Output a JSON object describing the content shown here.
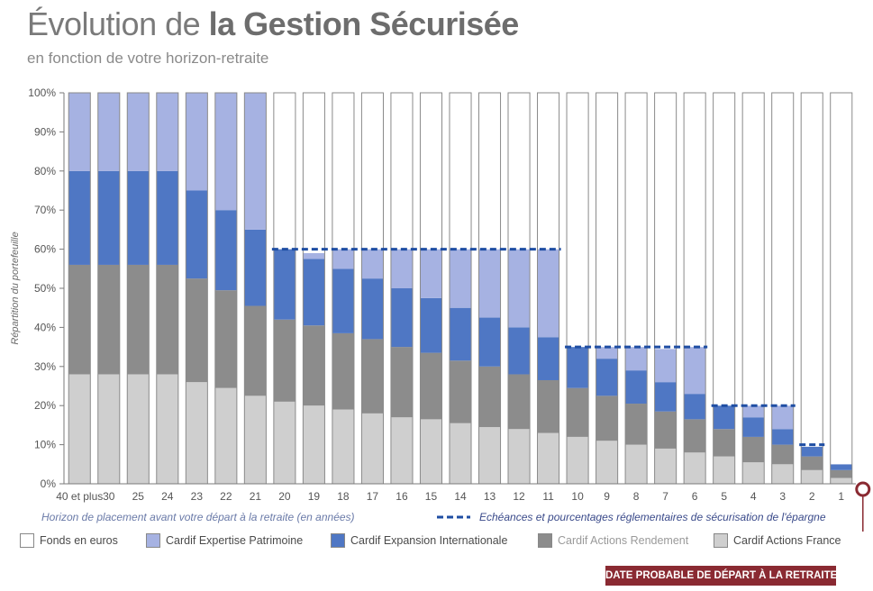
{
  "title_part1": "Évolution de ",
  "title_part2": "la Gestion Sécurisée",
  "subtitle": "en fonction de votre horizon-retraite",
  "badge": "DATE PROBABLE DE DÉPART À LA RETRAITE",
  "reference_line_label": "Echéances et pourcentages réglementaires de sécurisation de l'épargne",
  "colors": {
    "fonds_euros": "#ffffff",
    "expertise": "#a6b2e2",
    "expansion": "#4f77c4",
    "rendement": "#8c8c8c",
    "france": "#cfcfcf",
    "reference_line": "#1f4ea3",
    "badge": "#8a2a32"
  },
  "chart_data": {
    "type": "bar",
    "stacked": true,
    "ylabel": "Répartition du portefeuille",
    "xlabel": "Horizon de placement avant votre départ à la retraite (en années)",
    "ylim": [
      0,
      100
    ],
    "yticks": [
      "0%",
      "10%",
      "20%",
      "30%",
      "40%",
      "50%",
      "60%",
      "70%",
      "80%",
      "90%",
      "100%"
    ],
    "categories": [
      "40 et plus",
      "30",
      "25",
      "24",
      "23",
      "22",
      "21",
      "20",
      "19",
      "18",
      "17",
      "16",
      "15",
      "14",
      "13",
      "12",
      "11",
      "10",
      "9",
      "8",
      "7",
      "6",
      "5",
      "4",
      "3",
      "2",
      "1"
    ],
    "series": [
      {
        "name": "Cardif Actions France",
        "values": [
          28,
          28,
          28,
          28,
          26,
          24.5,
          22.5,
          21,
          20,
          19,
          18,
          17,
          16.5,
          15.5,
          14.5,
          14,
          13,
          12,
          11,
          10,
          9,
          8,
          7,
          5.5,
          5,
          3.5,
          1.5
        ]
      },
      {
        "name": "Cardif Actions Rendement",
        "values": [
          28,
          28,
          28,
          28,
          26.5,
          25,
          23,
          21,
          20.5,
          19.5,
          19,
          18,
          17,
          16,
          15.5,
          14,
          13.5,
          12.5,
          11.5,
          10.5,
          9.5,
          8.5,
          7,
          6.5,
          5,
          3.5,
          2
        ]
      },
      {
        "name": "Cardif Expansion Internationale",
        "values": [
          24,
          24,
          24,
          24,
          22.5,
          20.5,
          19.5,
          18,
          17,
          16.5,
          15.5,
          15,
          14,
          13.5,
          12.5,
          12,
          11,
          10.5,
          9.5,
          8.5,
          7.5,
          6.5,
          6,
          5,
          4,
          2.5,
          1.5
        ]
      },
      {
        "name": "Cardif Expertise Patrimoine",
        "values": [
          20,
          20,
          20,
          20,
          25,
          30,
          35,
          0,
          1.5,
          5,
          7.5,
          10,
          12.5,
          15,
          17.5,
          20,
          22.5,
          0,
          3,
          6,
          8.5,
          12,
          0,
          3,
          6,
          0,
          0
        ]
      },
      {
        "name": "Fonds en euros",
        "values": [
          0,
          0,
          0,
          0,
          0,
          0,
          0,
          40,
          41,
          40,
          40,
          40,
          40,
          40,
          40,
          40,
          40,
          65,
          65,
          65,
          65,
          65,
          80,
          80,
          80,
          90,
          95
        ]
      }
    ],
    "reference_lines": [
      {
        "from": "20",
        "to": "11",
        "value": 60
      },
      {
        "from": "10",
        "to": "6",
        "value": 35
      },
      {
        "from": "5",
        "to": "3",
        "value": 20
      },
      {
        "from": "2",
        "to": "2",
        "value": 10
      }
    ],
    "legend": [
      "Fonds en euros",
      "Cardif Expertise Patrimoine",
      "Cardif Expansion Internationale",
      "Cardif Actions Rendement",
      "Cardif Actions France"
    ]
  }
}
